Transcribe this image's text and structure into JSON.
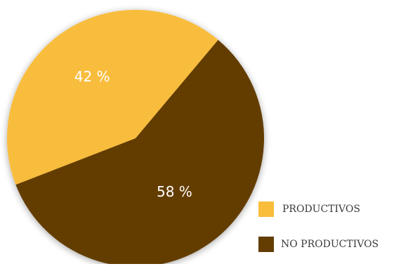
{
  "chart_data": {
    "type": "pie",
    "title": "",
    "slices": [
      {
        "label": "PRODUCTIVOS",
        "value": 42,
        "display": "42 %",
        "color": "#F9BD3C"
      },
      {
        "label": "NO PRODUCTIVOS",
        "value": 58,
        "display": "58 %",
        "color": "#633D02"
      }
    ],
    "legend_placement": "bottom-right",
    "start_angle_deg": 40
  }
}
